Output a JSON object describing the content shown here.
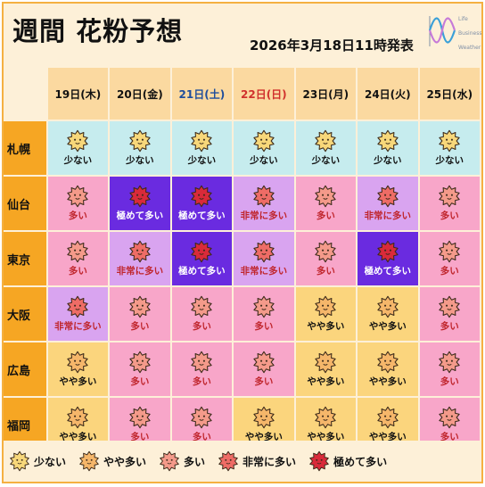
{
  "header": {
    "title": "週間 花粉予想",
    "issued": "2026年3月18日11時発表",
    "logo": [
      "Life",
      "Business",
      "Weather"
    ]
  },
  "days": [
    {
      "label": "19日(木)",
      "color": "#111111"
    },
    {
      "label": "20日(金)",
      "color": "#111111"
    },
    {
      "label": "21日(土)",
      "color": "#1f4e9c"
    },
    {
      "label": "22日(日)",
      "color": "#d0312d"
    },
    {
      "label": "23日(月)",
      "color": "#111111"
    },
    {
      "label": "24日(火)",
      "color": "#111111"
    },
    {
      "label": "25日(水)",
      "color": "#111111"
    }
  ],
  "levels": {
    "low": {
      "label": "少ない",
      "bg": "#c6ecee",
      "face": "#f7d77a",
      "text": "#111111"
    },
    "somewhat": {
      "label": "やや多い",
      "bg": "#fbd57d",
      "face": "#f5b66a",
      "text": "#111111"
    },
    "high": {
      "label": "多い",
      "bg": "#f8a6c9",
      "face": "#f49a8a",
      "text": "#c0262d"
    },
    "veryhigh": {
      "label": "非常に多い",
      "bg": "#d9a4f0",
      "face": "#ee6c66",
      "text": "#c0262d"
    },
    "extreme": {
      "label": "極めて多い",
      "bg": "#6a2be0",
      "face": "#d92a3a",
      "text": "#ffffff"
    }
  },
  "legend": [
    "少ない",
    "やや多い",
    "多い",
    "非常に多い",
    "極めて多い"
  ],
  "rows": [
    {
      "city": "札幌",
      "cells": [
        "少ない",
        "少ない",
        "少ない",
        "少ない",
        "少ない",
        "少ない",
        "少ない"
      ]
    },
    {
      "city": "仙台",
      "cells": [
        "多い",
        "極めて多い",
        "極めて多い",
        "非常に多い",
        "多い",
        "非常に多い",
        "多い"
      ]
    },
    {
      "city": "東京",
      "cells": [
        "多い",
        "非常に多い",
        "極めて多い",
        "非常に多い",
        "多い",
        "極めて多い",
        "多い"
      ]
    },
    {
      "city": "大阪",
      "cells": [
        "非常に多い",
        "多い",
        "多い",
        "多い",
        "やや多い",
        "やや多い",
        "多い"
      ]
    },
    {
      "city": "広島",
      "cells": [
        "やや多い",
        "多い",
        "多い",
        "多い",
        "やや多い",
        "やや多い",
        "多い"
      ]
    },
    {
      "city": "福岡",
      "cells": [
        "やや多い",
        "多い",
        "多い",
        "やや多い",
        "やや多い",
        "やや多い",
        "多い"
      ]
    }
  ]
}
